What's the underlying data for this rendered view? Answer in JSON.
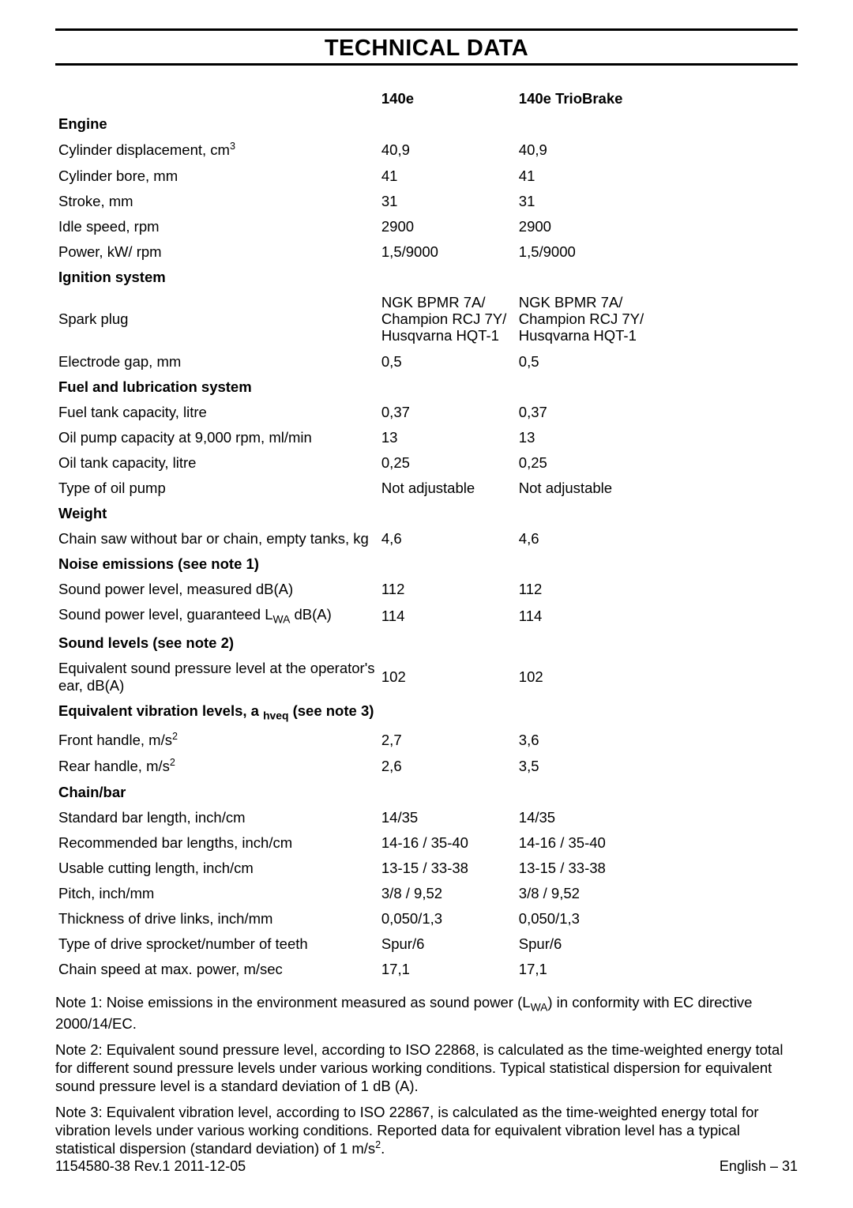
{
  "page": {
    "title": "TECHNICAL DATA",
    "columns": [
      "140e",
      "140e TrioBrake"
    ],
    "footer_left": "1154580-38 Rev.1 2011-12-05",
    "footer_right": "English – 31",
    "colors": {
      "text": "#000000",
      "background": "#ffffff",
      "rule": "#000000"
    },
    "typography": {
      "body_font": "Helvetica, Arial, sans-serif",
      "title_size_pt": 22,
      "body_size_pt": 14
    }
  },
  "sections": {
    "engine": {
      "heading": "Engine",
      "rows": [
        {
          "label": "Cylinder displacement, cm",
          "sup": "3",
          "v1": "40,9",
          "v2": "40,9"
        },
        {
          "label": "Cylinder bore, mm",
          "v1": "41",
          "v2": "41"
        },
        {
          "label": "Stroke, mm",
          "v1": "31",
          "v2": "31"
        },
        {
          "label": "Idle speed, rpm",
          "v1": "2900",
          "v2": "2900"
        },
        {
          "label": "Power, kW/ rpm",
          "v1": "1,5/9000",
          "v2": "1,5/9000"
        }
      ]
    },
    "ignition": {
      "heading": "Ignition system",
      "spark_plug_label": "Spark plug",
      "spark_plug_v1_l1": "NGK BPMR 7A/",
      "spark_plug_v1_l2": "Champion RCJ 7Y/",
      "spark_plug_v1_l3": "Husqvarna HQT-1",
      "spark_plug_v2_l1": "NGK BPMR 7A/",
      "spark_plug_v2_l2": "Champion RCJ 7Y/",
      "spark_plug_v2_l3": "Husqvarna HQT-1",
      "electrode": {
        "label": "Electrode gap, mm",
        "v1": "0,5",
        "v2": "0,5"
      }
    },
    "fuel": {
      "heading": "Fuel and lubrication system",
      "rows": [
        {
          "label": "Fuel tank capacity, litre",
          "v1": "0,37",
          "v2": "0,37"
        },
        {
          "label": "Oil pump capacity at 9,000 rpm, ml/min",
          "v1": "13",
          "v2": "13"
        },
        {
          "label": "Oil tank capacity, litre",
          "v1": "0,25",
          "v2": "0,25"
        },
        {
          "label": "Type of oil pump",
          "v1": "Not adjustable",
          "v2": "Not adjustable"
        }
      ]
    },
    "weight": {
      "heading": "Weight",
      "row": {
        "label": "Chain saw without bar or chain, empty tanks, kg",
        "v1": "4,6",
        "v2": "4,6"
      }
    },
    "noise": {
      "heading": "Noise emissions (see note 1)",
      "rows": [
        {
          "label": "Sound power level, measured dB(A)",
          "v1": "112",
          "v2": "112"
        }
      ],
      "lwa_label_pre": "Sound power level, guaranteed L",
      "lwa_sub": "WA",
      "lwa_label_post": " dB(A)",
      "lwa_v1": "114",
      "lwa_v2": "114"
    },
    "sound_levels": {
      "heading": "Sound levels (see note 2)",
      "row": {
        "label": "Equivalent sound pressure level at the operator's ear, dB(A)",
        "v1": "102",
        "v2": "102"
      }
    },
    "vibration": {
      "heading_pre": "Equivalent vibration levels, a ",
      "heading_sub": "hveq",
      "heading_post": " (see note 3)",
      "rows": [
        {
          "label_pre": "Front handle, m/s",
          "sup": "2",
          "v1": "2,7",
          "v2": "3,6"
        },
        {
          "label_pre": "Rear handle, m/s",
          "sup": "2",
          "v1": "2,6",
          "v2": "3,5"
        }
      ]
    },
    "chainbar": {
      "heading": "Chain/bar",
      "rows": [
        {
          "label": "Standard bar length, inch/cm",
          "v1": "14/35",
          "v2": "14/35"
        },
        {
          "label": "Recommended bar lengths, inch/cm",
          "v1": "14-16 / 35-40",
          "v2": "14-16 / 35-40"
        },
        {
          "label": "Usable cutting length, inch/cm",
          "v1": "13-15 / 33-38",
          "v2": "13-15 / 33-38"
        },
        {
          "label": "Pitch, inch/mm",
          "v1": "3/8 / 9,52",
          "v2": "3/8 / 9,52"
        },
        {
          "label": "Thickness of drive links, inch/mm",
          "v1": "0,050/1,3",
          "v2": "0,050/1,3"
        },
        {
          "label": "Type of drive sprocket/number of teeth",
          "v1": "Spur/6",
          "v2": "Spur/6"
        },
        {
          "label": "Chain speed at max. power, m/sec",
          "v1": "17,1",
          "v2": "17,1"
        }
      ]
    }
  },
  "notes": {
    "n1_pre": "Note 1: Noise emissions in the environment measured as sound power (L",
    "n1_sub": "WA",
    "n1_post": ") in conformity with EC directive 2000/14/EC.",
    "n2": "Note 2: Equivalent sound pressure level, according to ISO 22868, is calculated as the time-weighted energy total for different sound pressure levels under various working conditions. Typical statistical dispersion for equivalent sound pressure level is a standard deviation of 1 dB (A).",
    "n3_pre": "Note 3: Equivalent vibration level, according to ISO 22867, is calculated as the time-weighted energy total for vibration levels under various working conditions. Reported data for equivalent vibration level has a typical statistical dispersion (standard deviation) of 1 m/s",
    "n3_sup": "2",
    "n3_post": "."
  }
}
